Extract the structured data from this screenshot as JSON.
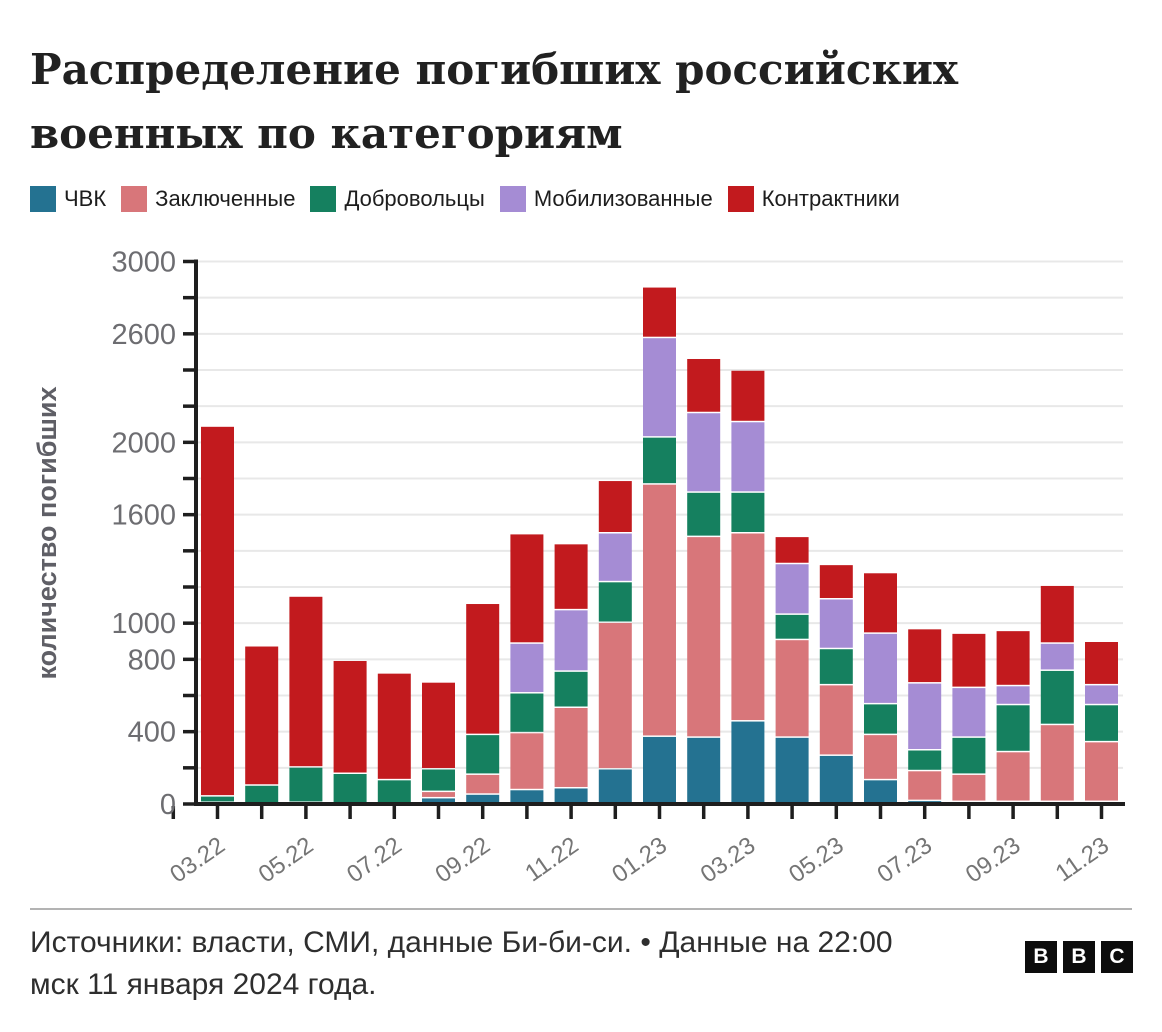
{
  "header": {
    "title": "Распределение погибших российских военных по категориям"
  },
  "legend": {
    "items": [
      {
        "label": "ЧВК",
        "color": "#247291"
      },
      {
        "label": "Заключенные",
        "color": "#d8767a"
      },
      {
        "label": "Добровольцы",
        "color": "#15805f"
      },
      {
        "label": "Мобилизованные",
        "color": "#a58cd4"
      },
      {
        "label": "Контрактники",
        "color": "#c21a1e"
      }
    ]
  },
  "chart_data": {
    "type": "bar",
    "stacked": true,
    "title": "Распределение погибших российских военных по категориям",
    "xlabel": "",
    "ylabel": "количество погибших",
    "ylim": [
      0,
      3000
    ],
    "y_tick_step": 200,
    "y_labeled_ticks": [
      0,
      400,
      800,
      1000,
      1600,
      2000,
      2600,
      3000
    ],
    "grid": true,
    "legend_position": "top",
    "categories": [
      "03.22",
      "04.22",
      "05.22",
      "06.22",
      "07.22",
      "08.22",
      "09.22",
      "10.22",
      "11.22",
      "12.22",
      "01.23",
      "02.23",
      "03.23",
      "04.23",
      "05.23",
      "06.23",
      "07.23",
      "08.23",
      "09.23",
      "10.23",
      "11.23"
    ],
    "x_labeled_ticks": [
      "03.22",
      "05.22",
      "07.22",
      "09.22",
      "11.22",
      "01.23",
      "03.23",
      "05.23",
      "07.23",
      "09.23",
      "11.23"
    ],
    "series": [
      {
        "name": "ЧВК",
        "color": "#247291",
        "values": [
          10,
          5,
          10,
          5,
          5,
          35,
          55,
          80,
          90,
          195,
          375,
          370,
          460,
          370,
          270,
          135,
          20,
          15,
          15,
          15,
          15
        ]
      },
      {
        "name": "Заключенные",
        "color": "#d8767a",
        "values": [
          0,
          0,
          0,
          0,
          0,
          35,
          110,
          315,
          445,
          810,
          1395,
          1110,
          1040,
          540,
          390,
          250,
          165,
          150,
          275,
          425,
          330
        ]
      },
      {
        "name": "Добровольцы",
        "color": "#15805f",
        "values": [
          35,
          100,
          195,
          165,
          130,
          125,
          220,
          220,
          200,
          225,
          260,
          245,
          225,
          140,
          200,
          170,
          115,
          205,
          260,
          300,
          205
        ]
      },
      {
        "name": "Мобилизованные",
        "color": "#a58cd4",
        "values": [
          0,
          0,
          0,
          0,
          0,
          0,
          0,
          275,
          340,
          270,
          550,
          440,
          390,
          280,
          275,
          390,
          370,
          275,
          105,
          150,
          110
        ]
      },
      {
        "name": "Контрактники",
        "color": "#c21a1e",
        "values": [
          2045,
          770,
          945,
          625,
          590,
          480,
          725,
          605,
          365,
          290,
          280,
          300,
          285,
          150,
          190,
          335,
          300,
          300,
          305,
          320,
          240
        ]
      }
    ]
  },
  "footer": {
    "source": "Источники: власти, СМИ, данные Би-би-си. • Данные на 22:00 мск 11 января 2024 года.",
    "logo_letters": [
      "B",
      "B",
      "C"
    ]
  },
  "style": {
    "axis_color": "#1e1e1e",
    "grid_color": "#e8e8e8",
    "tick_label_color": "#6d6d71",
    "ylabel_color": "#5f5f66"
  }
}
